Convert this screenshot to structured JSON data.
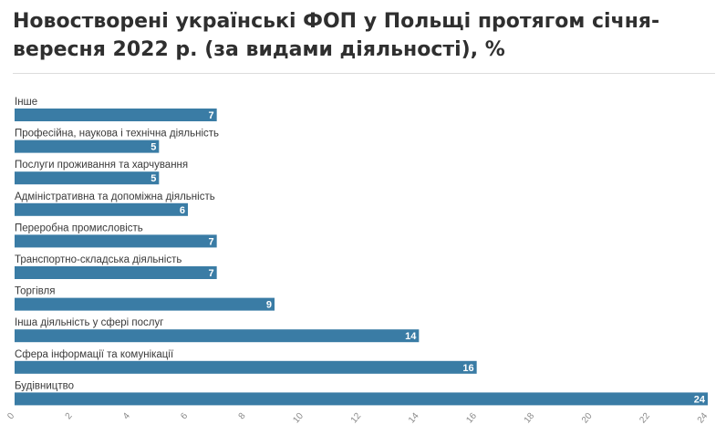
{
  "title": "Новостворені українські ФОП у Польщі протягом січня-вересня 2022 р. (за видами діяльності), %",
  "colors": {
    "bar": "#3a7ca5",
    "value_text": "#ffffff",
    "axis_tick": "#8a8a8a",
    "rule": "#dcdcdc"
  },
  "chart_data": {
    "type": "bar",
    "orientation": "horizontal",
    "categories": [
      "Інше",
      "Професійна, наукова і технічна діяльність",
      "Послуги проживання та харчування",
      "Адміністративна та допоміжна діяльність",
      "Переробна промисловість",
      "Транспортно-складська діяльність",
      "Торгівля",
      "Інша діяльність у сфері послуг",
      "Сфера інформації та комунікації",
      "Будівництво"
    ],
    "values": [
      7,
      5,
      5,
      6,
      7,
      7,
      9,
      14,
      16,
      24
    ],
    "value_labels": [
      "7",
      "5",
      "5",
      "6",
      "7",
      "7",
      "9",
      "14",
      "16",
      "24"
    ],
    "xlim": [
      0,
      24
    ],
    "x_ticks": [
      "0",
      "2",
      "4",
      "6",
      "8",
      "10",
      "12",
      "14",
      "16",
      "18",
      "20",
      "22",
      "24"
    ],
    "grid": false,
    "legend": "none"
  }
}
